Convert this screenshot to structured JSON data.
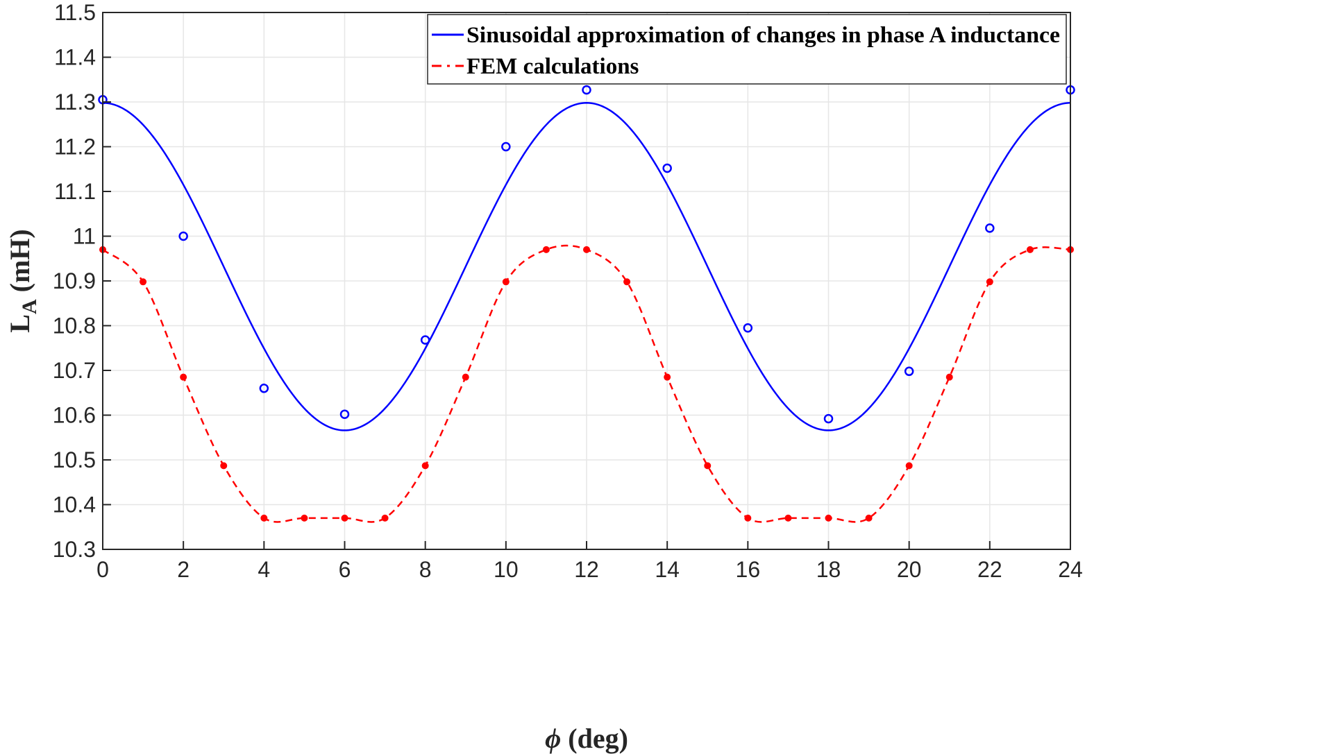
{
  "chart_data": {
    "type": "line",
    "title": "",
    "xlabel": "ϕ (deg)",
    "xlabel_symbol": "ϕ",
    "xlabel_rest": " (deg)",
    "ylabel_main": "L",
    "ylabel_sub": "A",
    "ylabel_unit": " (mH)",
    "xlim": [
      0,
      24
    ],
    "ylim": [
      10.3,
      11.5
    ],
    "xticks": [
      0,
      2,
      4,
      6,
      8,
      10,
      12,
      14,
      16,
      18,
      20,
      22,
      24
    ],
    "yticks": [
      10.3,
      10.4,
      10.5,
      10.6,
      10.7,
      10.8,
      10.9,
      11,
      11.1,
      11.2,
      11.3,
      11.4,
      11.5
    ],
    "ytick_labels": [
      "10.3",
      "10.4",
      "10.5",
      "10.6",
      "10.7",
      "10.8",
      "10.9",
      "11",
      "11.1",
      "11.2",
      "11.3",
      "11.4",
      "11.5"
    ],
    "grid": true,
    "legend_position": "top-right",
    "series": [
      {
        "name": "Sinusoidal approximation of changes in phase A inductance",
        "color": "#0000ff",
        "style": "solid",
        "curve": {
          "offset": 10.932,
          "amplitude": 0.366,
          "period": 12,
          "phase": 0
        },
        "markers": "open-circle",
        "marker_x": [
          0,
          2,
          4,
          6,
          8,
          10,
          12,
          14,
          16,
          18,
          20,
          22,
          24
        ],
        "marker_y": [
          11.305,
          11.0,
          10.66,
          10.602,
          10.768,
          11.2,
          11.327,
          11.152,
          10.795,
          10.592,
          10.698,
          11.018,
          11.327
        ]
      },
      {
        "name": "FEM calculations",
        "color": "#ff0000",
        "style": "dashed",
        "markers": "filled-dot",
        "x": [
          0,
          1,
          2,
          3,
          4,
          5,
          6,
          7,
          8,
          9,
          10,
          11,
          12,
          13,
          14,
          15,
          16,
          17,
          18,
          19,
          20,
          21,
          22,
          23,
          24
        ],
        "y": [
          10.97,
          10.898,
          10.685,
          10.487,
          10.37,
          10.37,
          10.37,
          10.37,
          10.487,
          10.685,
          10.898,
          10.97,
          10.97,
          10.898,
          10.685,
          10.487,
          10.37,
          10.37,
          10.37,
          10.37,
          10.487,
          10.685,
          10.898,
          10.97,
          10.97
        ]
      }
    ]
  }
}
